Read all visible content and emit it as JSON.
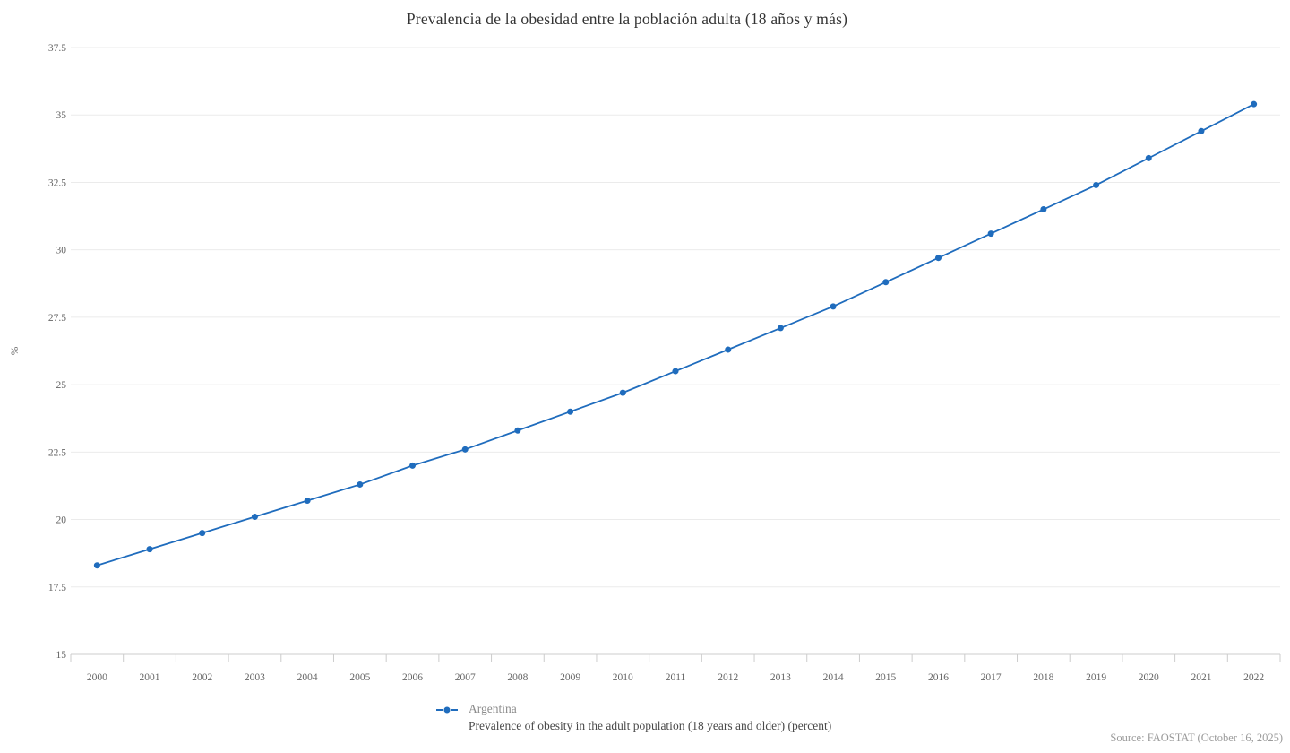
{
  "header": {
    "title": "Prevalencia de la obesidad entre la población adulta (18 años y más)"
  },
  "legend": {
    "series_name": "Argentina",
    "series_description": "Prevalence of obesity in the adult population (18 years and older) (percent)"
  },
  "footer": {
    "source": "Source: FAOSTAT (October 16, 2025)"
  },
  "colors": {
    "series_blue": "#1f6cbd",
    "gridline": "#ebebeb",
    "axis": "#cccccc",
    "tick_label": "#666666",
    "title_text": "#333333"
  },
  "chart_data": {
    "type": "line",
    "title": "Prevalencia de la obesidad entre la población adulta (18 años y más)",
    "xlabel": "",
    "ylabel": "%",
    "categories": [
      2000,
      2001,
      2002,
      2003,
      2004,
      2005,
      2006,
      2007,
      2008,
      2009,
      2010,
      2011,
      2012,
      2013,
      2014,
      2015,
      2016,
      2017,
      2018,
      2019,
      2020,
      2021,
      2022
    ],
    "series": [
      {
        "name": "Argentina",
        "description": "Prevalence of obesity in the adult population (18 years and older) (percent)",
        "color": "#1f6cbd",
        "values": [
          18.3,
          18.9,
          19.5,
          20.1,
          20.7,
          21.3,
          22.0,
          22.6,
          23.3,
          24.0,
          24.7,
          25.5,
          26.3,
          27.1,
          27.9,
          28.8,
          29.7,
          30.6,
          31.5,
          32.4,
          33.4,
          34.4,
          35.4
        ]
      }
    ],
    "ylim": [
      15,
      37.5
    ],
    "yticks": [
      15,
      17.5,
      20,
      22.5,
      25,
      27.5,
      30,
      32.5,
      35,
      37.5
    ],
    "grid": true,
    "legend_position": "bottom"
  }
}
